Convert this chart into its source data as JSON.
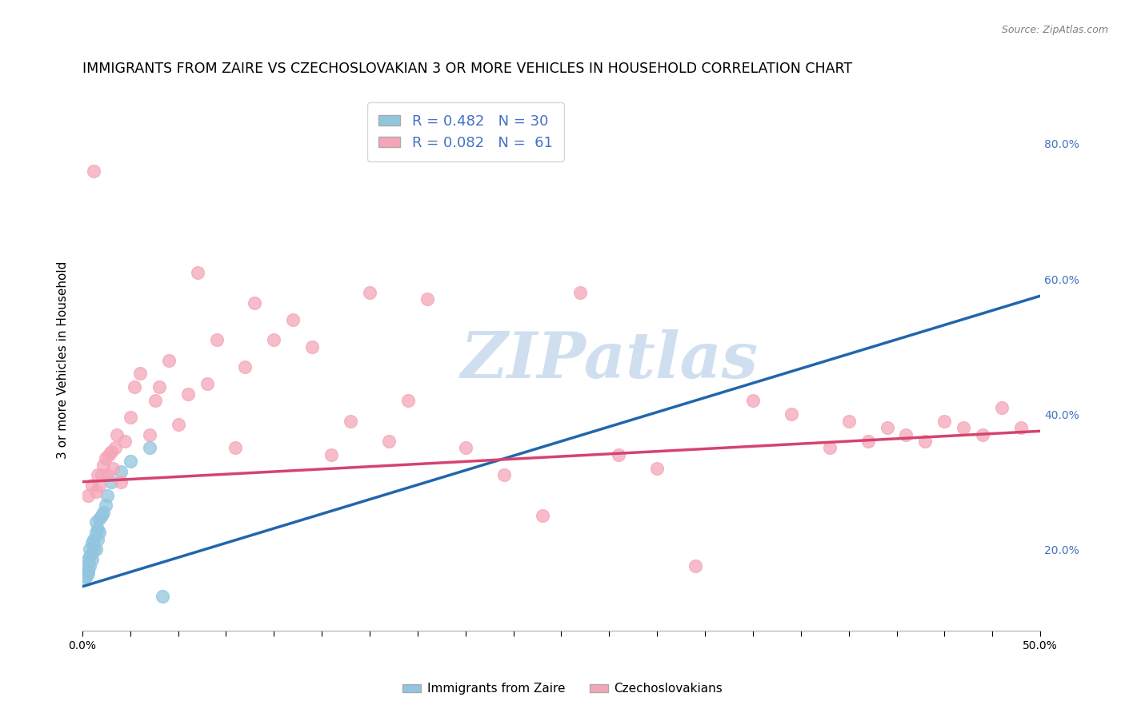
{
  "title": "IMMIGRANTS FROM ZAIRE VS CZECHOSLOVAKIAN 3 OR MORE VEHICLES IN HOUSEHOLD CORRELATION CHART",
  "source": "Source: ZipAtlas.com",
  "ylabel": "3 or more Vehicles in Household",
  "legend_label1": "Immigrants from Zaire",
  "legend_label2": "Czechoslovakians",
  "R1": 0.482,
  "N1": 30,
  "R2": 0.082,
  "N2": 61,
  "xlim": [
    0.0,
    0.5
  ],
  "ylim": [
    0.08,
    0.88
  ],
  "xticks_minor": [
    0.0,
    0.025,
    0.05,
    0.075,
    0.1,
    0.125,
    0.15,
    0.175,
    0.2,
    0.225,
    0.25,
    0.275,
    0.3,
    0.325,
    0.35,
    0.375,
    0.4,
    0.425,
    0.45,
    0.475,
    0.5
  ],
  "xticks_labeled": [
    0.0,
    0.5
  ],
  "yticks_right": [
    0.2,
    0.4,
    0.6,
    0.8
  ],
  "color_blue": "#92c5de",
  "color_pink": "#f4a6b8",
  "color_blue_line": "#2166ac",
  "color_pink_line": "#d6436e",
  "watermark": "ZIPatlas",
  "watermark_color": "#d0dff0",
  "blue_x": [
    0.001,
    0.002,
    0.002,
    0.003,
    0.003,
    0.003,
    0.004,
    0.004,
    0.004,
    0.005,
    0.005,
    0.005,
    0.006,
    0.006,
    0.007,
    0.007,
    0.007,
    0.008,
    0.008,
    0.009,
    0.009,
    0.01,
    0.011,
    0.012,
    0.013,
    0.015,
    0.02,
    0.025,
    0.035,
    0.042
  ],
  "blue_y": [
    0.155,
    0.175,
    0.16,
    0.165,
    0.185,
    0.17,
    0.175,
    0.19,
    0.2,
    0.185,
    0.195,
    0.21,
    0.2,
    0.215,
    0.2,
    0.225,
    0.24,
    0.215,
    0.23,
    0.225,
    0.245,
    0.25,
    0.255,
    0.265,
    0.28,
    0.3,
    0.315,
    0.33,
    0.35,
    0.13
  ],
  "pink_x": [
    0.003,
    0.005,
    0.006,
    0.007,
    0.008,
    0.009,
    0.01,
    0.011,
    0.012,
    0.013,
    0.014,
    0.015,
    0.016,
    0.017,
    0.018,
    0.02,
    0.022,
    0.025,
    0.027,
    0.03,
    0.035,
    0.038,
    0.04,
    0.045,
    0.05,
    0.055,
    0.06,
    0.065,
    0.07,
    0.08,
    0.085,
    0.09,
    0.1,
    0.11,
    0.12,
    0.13,
    0.14,
    0.15,
    0.16,
    0.17,
    0.18,
    0.2,
    0.22,
    0.24,
    0.26,
    0.28,
    0.3,
    0.32,
    0.35,
    0.37,
    0.39,
    0.4,
    0.41,
    0.42,
    0.43,
    0.44,
    0.45,
    0.46,
    0.47,
    0.48,
    0.49
  ],
  "pink_y": [
    0.28,
    0.295,
    0.76,
    0.285,
    0.31,
    0.295,
    0.31,
    0.325,
    0.335,
    0.31,
    0.34,
    0.345,
    0.32,
    0.35,
    0.37,
    0.3,
    0.36,
    0.395,
    0.44,
    0.46,
    0.37,
    0.42,
    0.44,
    0.48,
    0.385,
    0.43,
    0.61,
    0.445,
    0.51,
    0.35,
    0.47,
    0.565,
    0.51,
    0.54,
    0.5,
    0.34,
    0.39,
    0.58,
    0.36,
    0.42,
    0.57,
    0.35,
    0.31,
    0.25,
    0.58,
    0.34,
    0.32,
    0.175,
    0.42,
    0.4,
    0.35,
    0.39,
    0.36,
    0.38,
    0.37,
    0.36,
    0.39,
    0.38,
    0.37,
    0.41,
    0.38
  ],
  "blue_line_x0": 0.0,
  "blue_line_x1": 0.5,
  "blue_line_y0": 0.145,
  "blue_line_y1": 0.575,
  "pink_line_x0": 0.0,
  "pink_line_x1": 0.5,
  "pink_line_y0": 0.3,
  "pink_line_y1": 0.375,
  "background_color": "#ffffff",
  "grid_color": "#cccccc",
  "title_fontsize": 12.5,
  "axis_fontsize": 11,
  "tick_fontsize": 10,
  "legend_fontsize": 13
}
